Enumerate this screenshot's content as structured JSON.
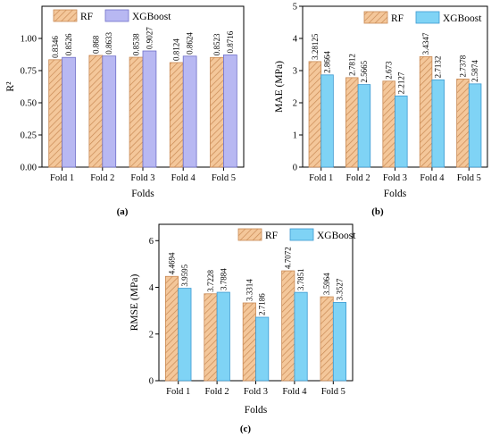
{
  "panel_labels": [
    "(a)",
    "(b)",
    "(c)"
  ],
  "colors": {
    "rf_fill": "#f4c79a",
    "rf_hatch": "#c98a55",
    "xgb_fill_a": "#b8b8f2",
    "xgb_fill_bc": "#7fd3f5",
    "xgb_stroke_a": "#7070c8",
    "xgb_stroke_bc": "#3d9ad1"
  },
  "chart_data": [
    {
      "type": "bar",
      "categories": [
        "Fold 1",
        "Fold 2",
        "Fold 3",
        "Fold 4",
        "Fold 5"
      ],
      "series": [
        {
          "name": "RF",
          "values": [
            0.8346,
            0.868,
            0.8538,
            0.8124,
            0.8523
          ],
          "labels": [
            "0.8346",
            "0.868",
            "0.8538",
            "0.8124",
            "0.8523"
          ]
        },
        {
          "name": "XGBoost",
          "values": [
            0.8526,
            0.8633,
            0.9027,
            0.8624,
            0.8716
          ],
          "labels": [
            "0.8526",
            "0.8633",
            "0.9027",
            "0.8624",
            "0.8716"
          ]
        }
      ],
      "xlabel": "Folds",
      "ylabel": "R²",
      "ylim": [
        0,
        1.25
      ],
      "yticks": [
        0,
        0.25,
        0.5,
        0.75,
        1.0
      ],
      "ytick_labels": [
        "0.00",
        "0.25",
        "0.50",
        "0.75",
        "1.00"
      ],
      "legend": "top-left"
    },
    {
      "type": "bar",
      "categories": [
        "Fold 1",
        "Fold 2",
        "Fold 3",
        "Fold 4",
        "Fold 5"
      ],
      "series": [
        {
          "name": "RF",
          "values": [
            3.28125,
            2.7812,
            2.673,
            3.4347,
            2.7378
          ],
          "labels": [
            "3.28125",
            "2.7812",
            "2.673",
            "3.4347",
            "2.7378"
          ]
        },
        {
          "name": "XGBoost",
          "values": [
            2.8664,
            2.5665,
            2.2127,
            2.7132,
            2.5874
          ],
          "labels": [
            "2.8664",
            "2.5665",
            "2.2127",
            "2.7132",
            "2.5874"
          ]
        }
      ],
      "xlabel": "Folds",
      "ylabel": "MAE (MPa)",
      "ylim": [
        0,
        5
      ],
      "yticks": [
        0,
        1,
        2,
        3,
        4,
        5
      ],
      "ytick_labels": [
        "0",
        "1",
        "2",
        "3",
        "4",
        "5"
      ],
      "legend": "top-right"
    },
    {
      "type": "bar",
      "categories": [
        "Fold 1",
        "Fold 2",
        "Fold 3",
        "Fold 4",
        "Fold 5"
      ],
      "series": [
        {
          "name": "RF",
          "values": [
            4.4694,
            3.7228,
            3.3314,
            4.7072,
            3.5964
          ],
          "labels": [
            "4.4694",
            "3.7228",
            "3.3314",
            "4.7072",
            "3.5964"
          ]
        },
        {
          "name": "XGBoost",
          "values": [
            3.9595,
            3.7884,
            2.7186,
            3.7851,
            3.3527
          ],
          "labels": [
            "3.9595",
            "3.7884",
            "2.7186",
            "3.7851",
            "3.3527"
          ]
        }
      ],
      "xlabel": "Folds",
      "ylabel": "RMSE (MPa)",
      "ylim": [
        0,
        6.7
      ],
      "yticks": [
        0,
        2,
        4,
        6
      ],
      "ytick_labels": [
        "0",
        "2",
        "4",
        "6"
      ],
      "legend": "top-right"
    }
  ]
}
